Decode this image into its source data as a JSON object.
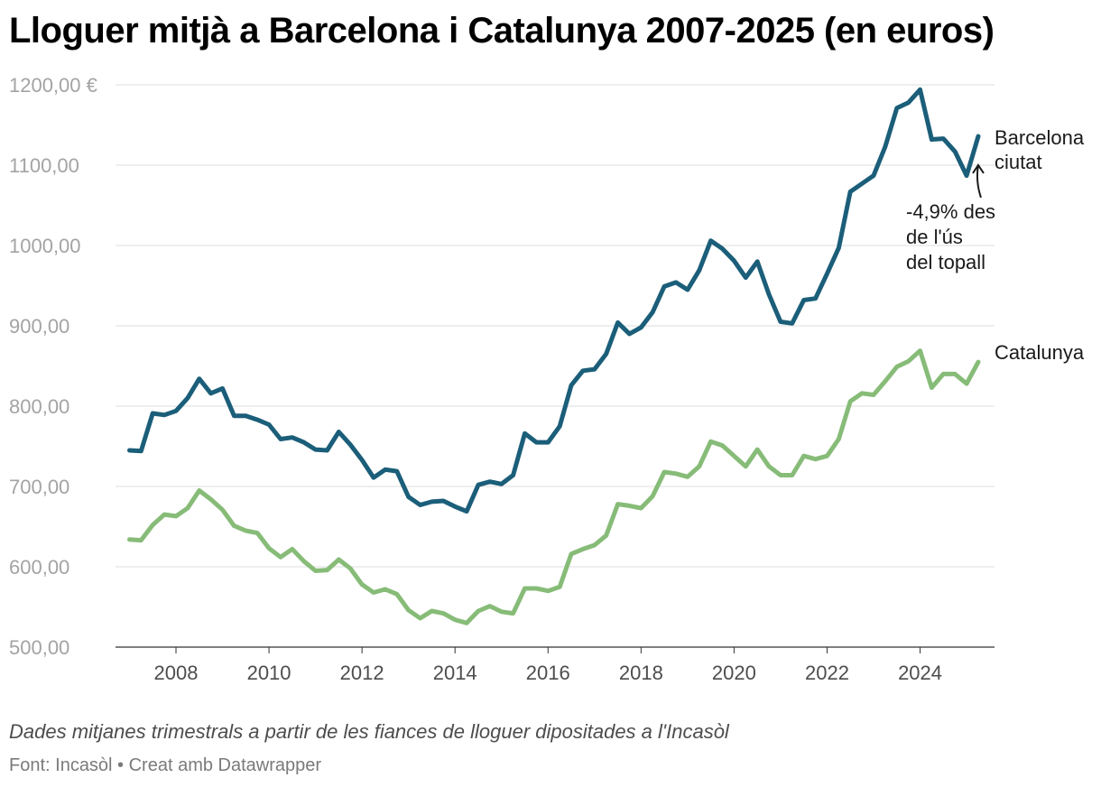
{
  "header": {
    "title": "Lloguer mitjà a Barcelona i Catalunya 2007-2025 (en euros)"
  },
  "footer": {
    "note": "Dades mitjanes trimestrals a partir de les fiances de lloguer dipositades a l'Incasòl",
    "source": "Font: Incasòl • Creat amb Datawrapper"
  },
  "chart_data": {
    "type": "line",
    "title": "Lloguer mitjà a Barcelona i Catalunya 2007-2025 (en euros)",
    "xlabel": "",
    "ylabel": "",
    "xlim": [
      2006.7,
      2025.6
    ],
    "ylim": [
      500,
      1200
    ],
    "grid": true,
    "x_ticks": [
      "2008",
      "2010",
      "2012",
      "2014",
      "2016",
      "2018",
      "2020",
      "2022",
      "2024"
    ],
    "y_ticks": [
      "500,00",
      "600,00",
      "700,00",
      "800,00",
      "900,00",
      "1000,00",
      "1100,00",
      "1200,00 €"
    ],
    "x": [
      2007.0,
      2007.25,
      2007.5,
      2007.75,
      2008.0,
      2008.25,
      2008.5,
      2008.75,
      2009.0,
      2009.25,
      2009.5,
      2009.75,
      2010.0,
      2010.25,
      2010.5,
      2010.75,
      2011.0,
      2011.25,
      2011.5,
      2011.75,
      2012.0,
      2012.25,
      2012.5,
      2012.75,
      2013.0,
      2013.25,
      2013.5,
      2013.75,
      2014.0,
      2014.25,
      2014.5,
      2014.75,
      2015.0,
      2015.25,
      2015.5,
      2015.75,
      2016.0,
      2016.25,
      2016.5,
      2016.75,
      2017.0,
      2017.25,
      2017.5,
      2017.75,
      2018.0,
      2018.25,
      2018.5,
      2018.75,
      2019.0,
      2019.25,
      2019.5,
      2019.75,
      2020.0,
      2020.25,
      2020.5,
      2020.75,
      2021.0,
      2021.25,
      2021.5,
      2021.75,
      2022.0,
      2022.25,
      2022.5,
      2022.75,
      2023.0,
      2023.25,
      2023.5,
      2023.75,
      2024.0,
      2024.25,
      2024.5,
      2024.75,
      2025.0,
      2025.25
    ],
    "series": [
      {
        "name": "Barcelona ciutat",
        "color": "#1b5e79",
        "values": [
          745,
          744,
          791,
          789,
          794,
          810,
          834,
          816,
          822,
          788,
          788,
          783,
          777,
          759,
          761,
          755,
          746,
          745,
          768,
          752,
          733,
          711,
          721,
          719,
          687,
          677,
          681,
          682,
          675,
          669,
          702,
          706,
          703,
          714,
          766,
          755,
          755,
          775,
          826,
          844,
          846,
          865,
          904,
          890,
          898,
          917,
          949,
          954,
          945,
          969,
          1006,
          996,
          981,
          960,
          980,
          939,
          905,
          903,
          932,
          934,
          965,
          997,
          1067,
          1077,
          1087,
          1123,
          1171,
          1178,
          1194,
          1132,
          1133,
          1117,
          1087,
          1136
        ]
      },
      {
        "name": "Catalunya",
        "color": "#87bc78",
        "values": [
          634,
          633,
          652,
          665,
          663,
          673,
          695,
          684,
          671,
          651,
          645,
          642,
          623,
          612,
          622,
          607,
          595,
          596,
          609,
          598,
          578,
          568,
          572,
          566,
          546,
          536,
          545,
          542,
          534,
          530,
          545,
          551,
          544,
          542,
          573,
          573,
          570,
          575,
          616,
          622,
          627,
          639,
          678,
          676,
          673,
          688,
          718,
          716,
          712,
          725,
          756,
          751,
          738,
          725,
          746,
          725,
          714,
          714,
          738,
          734,
          738,
          759,
          806,
          816,
          814,
          831,
          849,
          856,
          869,
          823,
          840,
          840,
          828,
          855
        ]
      }
    ],
    "annotations": [
      {
        "target_series": "Barcelona ciutat",
        "lines": [
          "-4,9% des",
          "de l'ús",
          "del topall"
        ]
      }
    ]
  }
}
